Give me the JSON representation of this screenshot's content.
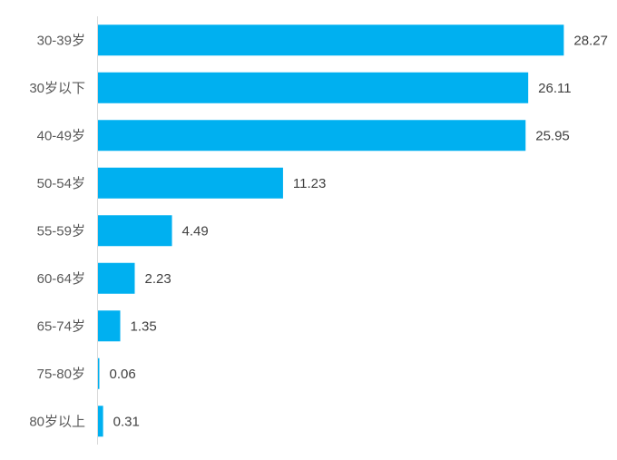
{
  "chart_data": {
    "type": "bar",
    "orientation": "horizontal",
    "categories": [
      "30-39岁",
      "30岁以下",
      "40-49岁",
      "50-54岁",
      "55-59岁",
      "60-64岁",
      "65-74岁",
      "75-80岁",
      "80岁以上"
    ],
    "values": [
      28.27,
      26.11,
      25.95,
      11.23,
      4.49,
      2.23,
      1.35,
      0.06,
      0.31
    ],
    "value_labels": [
      "28.27",
      "26.11",
      "25.95",
      "11.23",
      "4.49",
      "2.23",
      "1.35",
      "0.06",
      "0.31"
    ],
    "xlim": [
      0,
      28.8
    ],
    "bar_color": "#00B0F0",
    "axis_color": "#D9D9D9",
    "grid": false,
    "legend": "none"
  }
}
